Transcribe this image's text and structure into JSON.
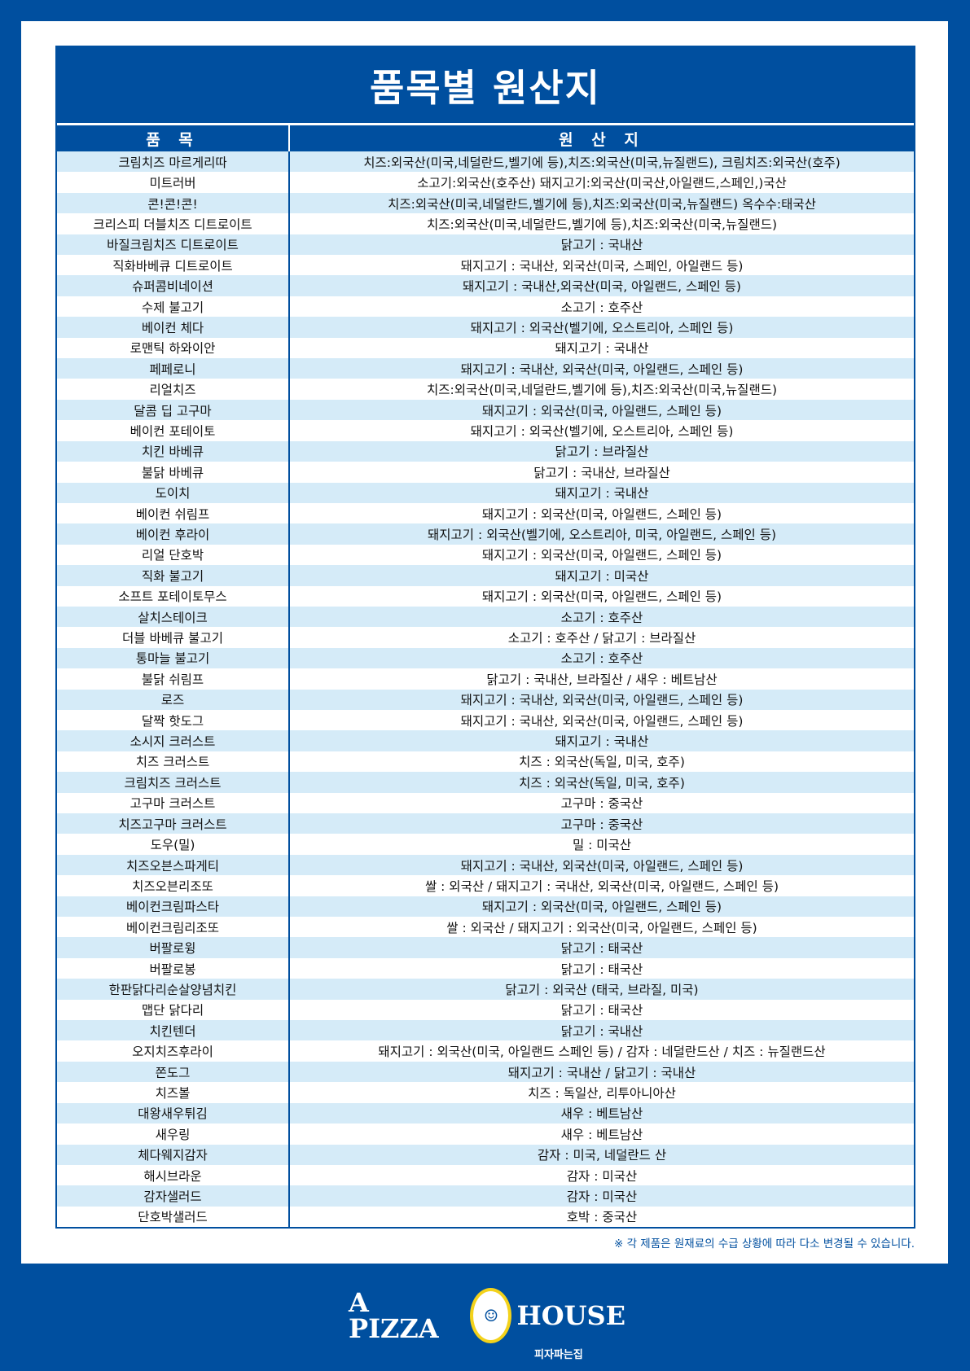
{
  "title": "품목별 원산지",
  "header": {
    "item": "품 목",
    "origin": "원 산 지"
  },
  "rows": [
    [
      "크림치즈 마르게리따",
      "치즈:외국산(미국,네덜란드,벨기에 등),치즈:외국산(미국,뉴질랜드), 크림치즈:외국산(호주)"
    ],
    [
      "미트러버",
      "소고기:외국산(호주산) 돼지고기:외국산(미국산,아일랜드,스페인,)국산"
    ],
    [
      "콘!콘!콘!",
      "치즈:외국산(미국,네덜란드,벨기에 등),치즈:외국산(미국,뉴질랜드) 옥수수:태국산"
    ],
    [
      "크리스피 더블치즈 디트로이트",
      "치즈:외국산(미국,네덜란드,벨기에 등),치즈:외국산(미국,뉴질랜드)"
    ],
    [
      "바질크림치즈 디트로이트",
      "닭고기 : 국내산"
    ],
    [
      "직화바베큐 디트로이트",
      "돼지고기 : 국내산, 외국산(미국, 스페인, 아일랜드 등)"
    ],
    [
      "슈퍼콤비네이션",
      "돼지고기 : 국내산,외국산(미국, 아일랜드, 스페인 등)"
    ],
    [
      "수제 불고기",
      "소고기 : 호주산"
    ],
    [
      "베이컨 체다",
      "돼지고기 : 외국산(벨기에, 오스트리아, 스페인 등)"
    ],
    [
      "로맨틱 하와이안",
      "돼지고기 : 국내산"
    ],
    [
      "페페로니",
      "돼지고기 : 국내산, 외국산(미국, 아일랜드, 스페인 등)"
    ],
    [
      "리얼치즈",
      "치즈:외국산(미국,네덜란드,벨기에 등),치즈:외국산(미국,뉴질랜드)"
    ],
    [
      "달콤 딥 고구마",
      "돼지고기 : 외국산(미국, 아일랜드, 스페인 등)"
    ],
    [
      "베이컨 포테이토",
      "돼지고기 : 외국산(벨기에, 오스트리아, 스페인 등)"
    ],
    [
      "치킨 바베큐",
      "닭고기 : 브라질산"
    ],
    [
      "불닭 바베큐",
      "닭고기 : 국내산, 브라질산"
    ],
    [
      "도이치",
      "돼지고기 : 국내산"
    ],
    [
      "베이컨 쉬림프",
      "돼지고기 : 외국산(미국, 아일랜드, 스페인 등)"
    ],
    [
      "베이컨 후라이",
      "돼지고기 : 외국산(벨기에, 오스트리아, 미국, 아일랜드, 스페인 등)"
    ],
    [
      "리얼 단호박",
      "돼지고기 : 외국산(미국, 아일랜드, 스페인 등)"
    ],
    [
      "직화 불고기",
      "돼지고기 : 미국산"
    ],
    [
      "소프트 포테이토무스",
      "돼지고기 : 외국산(미국, 아일랜드, 스페인 등)"
    ],
    [
      "살치스테이크",
      "소고기 : 호주산"
    ],
    [
      "더블 바베큐 불고기",
      "소고기 : 호주산 / 닭고기 : 브라질산"
    ],
    [
      "통마늘 불고기",
      "소고기 : 호주산"
    ],
    [
      "불닭 쉬림프",
      "닭고기 : 국내산, 브라질산 / 새우 : 베트남산"
    ],
    [
      "로즈",
      "돼지고기 : 국내산, 외국산(미국, 아일랜드, 스페인 등)"
    ],
    [
      "달짝 핫도그",
      "돼지고기 : 국내산, 외국산(미국, 아일랜드, 스페인 등)"
    ],
    [
      "소시지 크러스트",
      "돼지고기 : 국내산"
    ],
    [
      "치즈 크러스트",
      "치즈 : 외국산(독일, 미국, 호주)"
    ],
    [
      "크림치즈 크러스트",
      "치즈 : 외국산(독일, 미국, 호주)"
    ],
    [
      "고구마 크러스트",
      "고구마 : 중국산"
    ],
    [
      "치즈고구마 크러스트",
      "고구마 : 중국산"
    ],
    [
      "도우(밀)",
      "밀 : 미국산"
    ],
    [
      "치즈오븐스파게티",
      "돼지고기 : 국내산, 외국산(미국, 아일랜드, 스페인 등)"
    ],
    [
      "치즈오븐리조또",
      "쌀 : 외국산 / 돼지고기 : 국내산, 외국산(미국, 아일랜드, 스페인 등)"
    ],
    [
      "베이컨크림파스타",
      "돼지고기 : 외국산(미국, 아일랜드, 스페인 등)"
    ],
    [
      "베이컨크림리조또",
      "쌀 : 외국산 / 돼지고기 : 외국산(미국, 아일랜드, 스페인 등)"
    ],
    [
      "버팔로윙",
      "닭고기 : 태국산"
    ],
    [
      "버팔로봉",
      "닭고기 : 태국산"
    ],
    [
      "한판닭다리순살양념치킨",
      "닭고기 : 외국산 (태국, 브라질, 미국)"
    ],
    [
      "맵단 닭다리",
      "닭고기 : 태국산"
    ],
    [
      "치킨텐더",
      "닭고기 : 국내산"
    ],
    [
      "오지치즈후라이",
      "돼지고기 : 외국산(미국, 아일랜드 스페인 등) / 감자 : 네덜란드산 / 치즈 : 뉴질랜드산"
    ],
    [
      "쫀도그",
      "돼지고기 : 국내산 / 닭고기 : 국내산"
    ],
    [
      "치즈볼",
      "치즈 : 독일산, 리투아니아산"
    ],
    [
      "대왕새우튀김",
      "새우 : 베트남산"
    ],
    [
      "새우링",
      "새우 : 베트남산"
    ],
    [
      "체다웨지감자",
      "감자 : 미국, 네덜란드 산"
    ],
    [
      "해시브라운",
      "감자 : 미국산"
    ],
    [
      "감자샐러드",
      "감자 : 미국산"
    ],
    [
      "단호박샐러드",
      "호박 : 중국산"
    ]
  ],
  "note": "※ 각 제품은 원재료의 수급 상황에 따라 다소 변경될 수 있습니다.",
  "logo": {
    "left": "A PIZZA",
    "right": "HOUSE",
    "sub": "피자파는집"
  },
  "colors": {
    "brand": "#004f9f",
    "stripe": "#d5ebf8",
    "logo_ring": "#f3d21b"
  }
}
